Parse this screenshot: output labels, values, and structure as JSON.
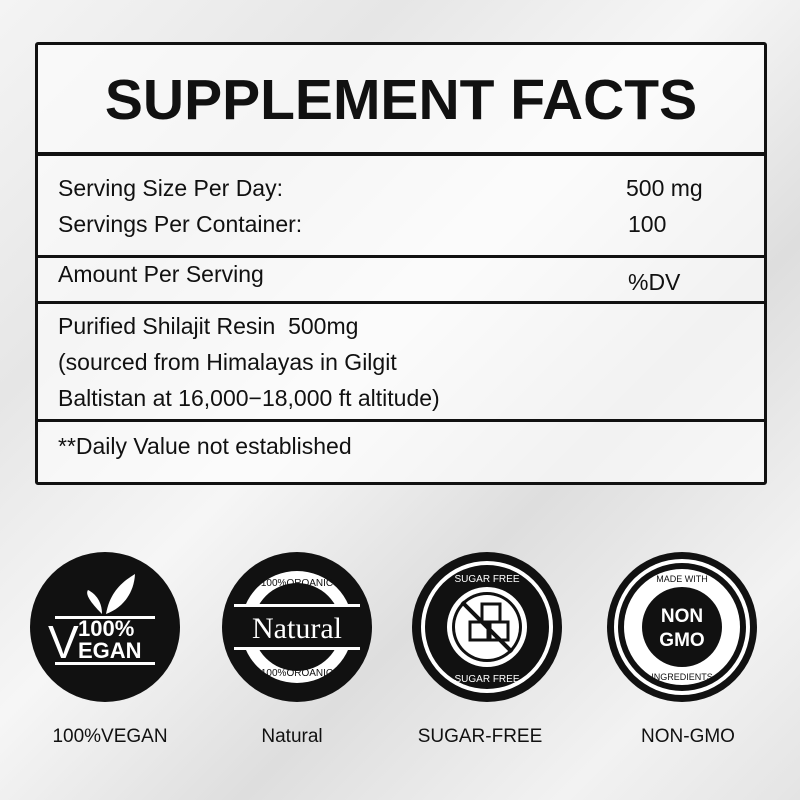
{
  "panel": {
    "title": "SUPPLEMENT FACTS",
    "serving_size_label": "Serving Size Per Day:",
    "serving_size_value": "500 mg",
    "servings_label": "Servings Per Container:",
    "servings_value": "100",
    "amount_label": "Amount Per Serving",
    "dv_label": "%DV",
    "ingredient_lines": [
      "Purified Shilajit Resin  500mg",
      "(sourced from Himalayas in Gilgit",
      "Baltistan at 16,000−18,000 ft altitude)"
    ],
    "footnote": "**Daily Value not established"
  },
  "badges": [
    {
      "icon": "vegan-leaf-badge",
      "top": "100%",
      "bottom": "EGAN",
      "letter": "V",
      "label": "100%VEGAN"
    },
    {
      "icon": "natural-badge",
      "ring_top": "100%OROANIC",
      "center": "Natural",
      "ring_bottom": "100%OROANIC",
      "label": "Natural"
    },
    {
      "icon": "sugar-free-badge",
      "ring_top": "SUGAR FREE",
      "ring_bottom": "SUGAR FREE",
      "label": "SUGAR-FREE"
    },
    {
      "icon": "non-gmo-badge",
      "ring_top": "MADE WITH",
      "center_1": "NON",
      "center_2": "GMO",
      "ring_bottom": "INGREDIENTS",
      "label": "NON-GMO"
    }
  ]
}
